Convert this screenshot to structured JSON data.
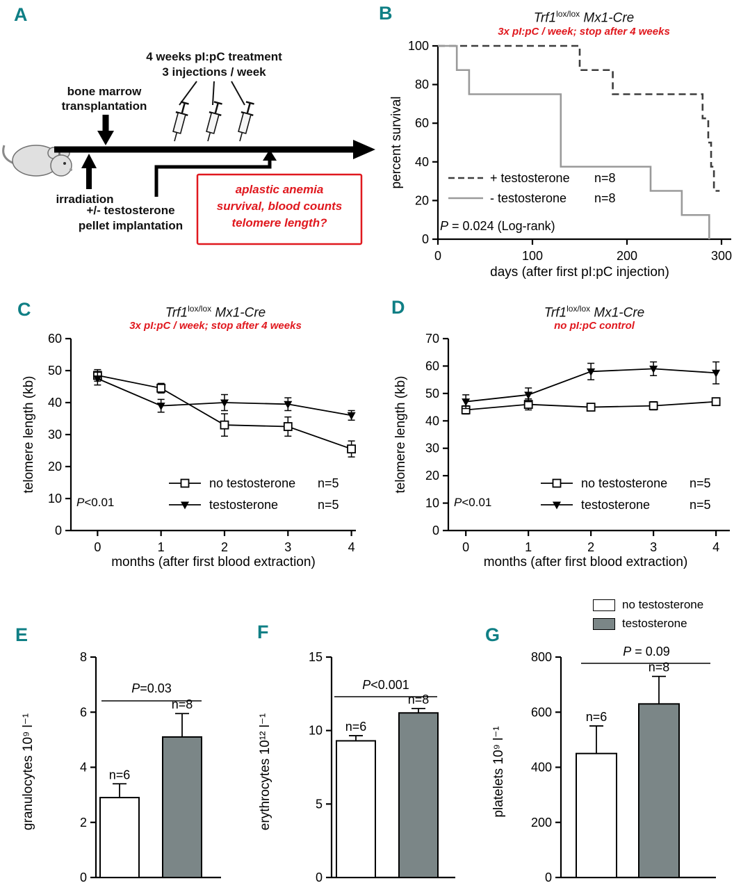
{
  "panels": {
    "A": "A",
    "B": "B",
    "C": "C",
    "D": "D",
    "E": "E",
    "F": "F",
    "G": "G"
  },
  "panelA": {
    "treatment_line1": "4 weeks pI:pC treatment",
    "treatment_line2": "3 injections / week",
    "bmt_line1": "bone marrow",
    "bmt_line2": "transplantation",
    "irradiation": "irradiation",
    "testosterone_line1": "+/- testosterone",
    "testosterone_line2": "pellet implantation",
    "box_line1": "aplastic anemia",
    "box_line2": "survival, blood counts",
    "box_line3": "telomere length?"
  },
  "top_legend": {
    "items": [
      {
        "label": "no testosterone",
        "fill": "#ffffff"
      },
      {
        "label": "testosterone",
        "fill": "#7b8687"
      }
    ]
  },
  "chart_data": {
    "B": {
      "type": "line",
      "subtype": "kaplan-meier-step",
      "title": {
        "gene": "Trf1",
        "sup": "lox/lox",
        "rest": " Mx1-Cre"
      },
      "subtitle": "3x pI:pC / week; stop after 4 weeks",
      "xlabel": "days (after first pI:pC injection)",
      "ylabel": "percent survival",
      "xlim": [
        0,
        300
      ],
      "xticks": [
        0,
        100,
        200,
        300
      ],
      "ylim": [
        0,
        100
      ],
      "yticks": [
        0,
        20,
        40,
        60,
        80,
        100
      ],
      "pvalue": "P = 0.024 (Log-rank)",
      "series": [
        {
          "label": "+ testosterone",
          "n": "n=8",
          "style": "dashed",
          "color": "#3d3d3d",
          "points": [
            [
              0,
              100
            ],
            [
              150,
              100
            ],
            [
              150,
              87.5
            ],
            [
              185,
              87.5
            ],
            [
              185,
              75
            ],
            [
              280,
              75
            ],
            [
              280,
              62.5
            ],
            [
              286,
              62.5
            ],
            [
              286,
              50
            ],
            [
              289,
              50
            ],
            [
              289,
              37.5
            ],
            [
              292,
              37.5
            ],
            [
              292,
              25
            ],
            [
              298,
              25
            ]
          ]
        },
        {
          "label": "- testosterone",
          "n": "n=8",
          "style": "solid",
          "color": "#9a9a9a",
          "points": [
            [
              0,
              100
            ],
            [
              20,
              100
            ],
            [
              20,
              87.5
            ],
            [
              33,
              87.5
            ],
            [
              33,
              75
            ],
            [
              130,
              75
            ],
            [
              130,
              37.5
            ],
            [
              225,
              37.5
            ],
            [
              225,
              25
            ],
            [
              258,
              25
            ],
            [
              258,
              12.5
            ],
            [
              287,
              12.5
            ],
            [
              287,
              0
            ]
          ]
        }
      ]
    },
    "C": {
      "type": "line",
      "subtype": "line-error",
      "title": {
        "gene": "Trf1",
        "sup": "lox/lox",
        "rest": " Mx1-Cre"
      },
      "subtitle": "3x pI:pC / week; stop after 4 weeks",
      "xlabel": "months (after first blood extraction)",
      "ylabel": "telomere length (kb)",
      "x": [
        0,
        1,
        2,
        3,
        4
      ],
      "xlim": [
        -0.42,
        4.07
      ],
      "xticks": [
        0,
        1,
        2,
        3,
        4
      ],
      "ylim": [
        0,
        60
      ],
      "yticks": [
        0,
        10,
        20,
        30,
        40,
        50,
        60
      ],
      "pvalue": "P<0.01",
      "series": [
        {
          "label": "no testosterone",
          "n": "n=5",
          "marker": "open-square",
          "values": [
            48.5,
            44.5,
            33,
            32.5,
            25.5
          ],
          "errors": [
            1.8,
            1.5,
            3.5,
            3,
            2.5
          ]
        },
        {
          "label": "testosterone",
          "n": "n=5",
          "marker": "filled-triangle",
          "values": [
            47.5,
            39,
            40,
            39.5,
            36
          ],
          "errors": [
            2,
            2,
            2.5,
            2,
            1.5
          ]
        }
      ]
    },
    "D": {
      "type": "line",
      "subtype": "line-error",
      "title": {
        "gene": "Trf1",
        "sup": "lox/lox",
        "rest": " Mx1-Cre"
      },
      "subtitle": "no pI:pC control",
      "xlabel": "months (after first blood extraction)",
      "ylabel": "telomere length (kb)",
      "x": [
        0,
        1,
        2,
        3,
        4
      ],
      "xlim": [
        -0.28,
        4.11
      ],
      "xticks": [
        0,
        1,
        2,
        3,
        4
      ],
      "ylim": [
        0,
        70
      ],
      "yticks": [
        0,
        10,
        20,
        30,
        40,
        50,
        60,
        70
      ],
      "pvalue": "P<0.01",
      "series": [
        {
          "label": "no testosterone",
          "n": "n=5",
          "marker": "open-square",
          "values": [
            44,
            46,
            45,
            45.5,
            47
          ],
          "errors": [
            1.5,
            2,
            1,
            1.5,
            1
          ]
        },
        {
          "label": "testosterone",
          "n": "n=5",
          "marker": "filled-triangle",
          "values": [
            47,
            49.5,
            58,
            59,
            57.5
          ],
          "errors": [
            2.5,
            2.5,
            3,
            2.5,
            4
          ]
        }
      ]
    },
    "E": {
      "type": "bar",
      "ylabel": "granulocytes 10⁹ l⁻¹",
      "ylim": [
        0,
        8
      ],
      "yticks": [
        0,
        2,
        4,
        6,
        8
      ],
      "pvalue": "P=0.03",
      "bars": [
        {
          "label": "n=6",
          "value": 2.9,
          "error": 0.5,
          "fill": "#ffffff"
        },
        {
          "label": "n=8",
          "value": 5.1,
          "error": 0.85,
          "fill": "#7b8687"
        }
      ]
    },
    "F": {
      "type": "bar",
      "ylabel": "erythrocytes 10¹² l⁻¹",
      "ylim": [
        0,
        15
      ],
      "yticks": [
        0,
        5,
        10,
        15
      ],
      "pvalue": "P<0.001",
      "bars": [
        {
          "label": "n=6",
          "value": 9.3,
          "error": 0.35,
          "fill": "#ffffff"
        },
        {
          "label": "n=8",
          "value": 11.2,
          "error": 0.3,
          "fill": "#7b8687"
        }
      ]
    },
    "G": {
      "type": "bar",
      "ylabel": "platelets 10⁹ l⁻¹",
      "ylim": [
        0,
        800
      ],
      "yticks": [
        0,
        200,
        400,
        600,
        800
      ],
      "pvalue": "P = 0.09",
      "bars": [
        {
          "label": "n=6",
          "value": 450,
          "error": 100,
          "fill": "#ffffff"
        },
        {
          "label": "n=8",
          "value": 630,
          "error": 100,
          "fill": "#7b8687"
        }
      ]
    }
  }
}
